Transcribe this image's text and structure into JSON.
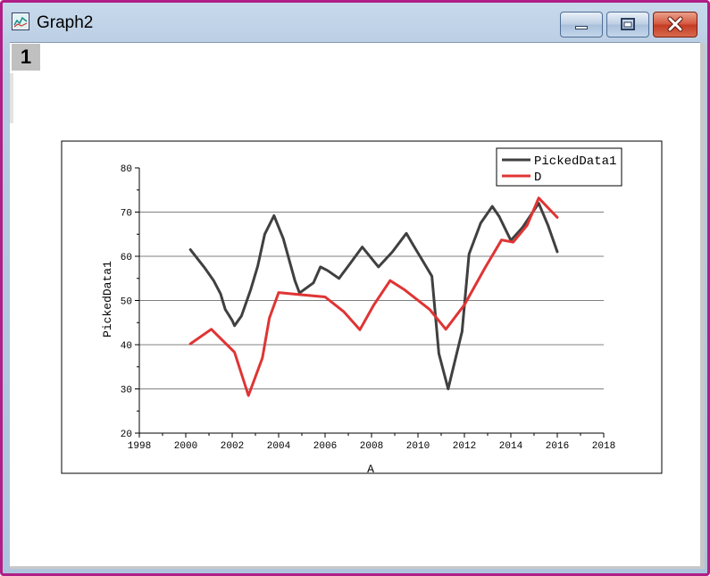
{
  "window": {
    "title": "Graph2",
    "layer_number": "1",
    "controls": {
      "minimize": "minimize",
      "maximize": "maximize",
      "close": "close"
    }
  },
  "colors": {
    "series_1": "#404040",
    "series_2": "#e03434",
    "window_border": "#b01e86",
    "close_button": "#c94a31"
  },
  "chart_data": {
    "type": "line",
    "xlabel": "A",
    "ylabel": "PickedData1",
    "xlim": [
      1998,
      2018
    ],
    "ylim": [
      20,
      80
    ],
    "x_ticks": [
      1998,
      2000,
      2002,
      2004,
      2006,
      2008,
      2010,
      2012,
      2014,
      2016,
      2018
    ],
    "y_ticks": [
      20,
      30,
      40,
      50,
      60,
      70,
      80
    ],
    "grid": "horizontal",
    "legend_position": "top-right",
    "series": [
      {
        "name": "PickedData1",
        "points": [
          [
            2000.2,
            61.5
          ],
          [
            2000.8,
            57.5
          ],
          [
            2001.2,
            54.5
          ],
          [
            2001.5,
            51.5
          ],
          [
            2001.7,
            48.0
          ],
          [
            2002.0,
            45.5
          ],
          [
            2002.1,
            44.3
          ],
          [
            2002.4,
            46.5
          ],
          [
            2002.8,
            52.5
          ],
          [
            2003.1,
            57.8
          ],
          [
            2003.4,
            65.0
          ],
          [
            2003.8,
            69.2
          ],
          [
            2004.2,
            64.0
          ],
          [
            2004.7,
            54.5
          ],
          [
            2004.9,
            51.7
          ],
          [
            2005.5,
            54.0
          ],
          [
            2005.8,
            57.6
          ],
          [
            2006.1,
            56.8
          ],
          [
            2006.6,
            55.0
          ],
          [
            2007.1,
            58.5
          ],
          [
            2007.6,
            62.1
          ],
          [
            2008.3,
            57.6
          ],
          [
            2008.9,
            61.0
          ],
          [
            2009.5,
            65.2
          ],
          [
            2009.8,
            62.5
          ],
          [
            2010.2,
            59.0
          ],
          [
            2010.6,
            55.5
          ],
          [
            2010.9,
            38.0
          ],
          [
            2011.3,
            30.0
          ],
          [
            2011.9,
            43.0
          ],
          [
            2012.2,
            60.5
          ],
          [
            2012.7,
            67.5
          ],
          [
            2013.2,
            71.3
          ],
          [
            2013.5,
            69.0
          ],
          [
            2014.0,
            63.6
          ],
          [
            2014.5,
            66.5
          ],
          [
            2015.2,
            72.0
          ],
          [
            2015.6,
            67.0
          ],
          [
            2016.0,
            61.0
          ]
        ]
      },
      {
        "name": "D",
        "points": [
          [
            2000.2,
            40.2
          ],
          [
            2001.1,
            43.5
          ],
          [
            2002.1,
            38.3
          ],
          [
            2002.7,
            28.5
          ],
          [
            2003.3,
            37.0
          ],
          [
            2003.6,
            46.0
          ],
          [
            2004.0,
            51.8
          ],
          [
            2005.0,
            51.3
          ],
          [
            2006.0,
            50.8
          ],
          [
            2006.8,
            47.5
          ],
          [
            2007.5,
            43.4
          ],
          [
            2008.1,
            49.0
          ],
          [
            2008.8,
            54.5
          ],
          [
            2009.4,
            52.5
          ],
          [
            2010.5,
            48.0
          ],
          [
            2011.2,
            43.5
          ],
          [
            2012.0,
            49.0
          ],
          [
            2012.9,
            57.5
          ],
          [
            2013.6,
            63.7
          ],
          [
            2014.1,
            63.2
          ],
          [
            2014.7,
            67.0
          ],
          [
            2015.2,
            73.2
          ],
          [
            2015.6,
            71.0
          ],
          [
            2016.0,
            68.8
          ]
        ]
      }
    ]
  }
}
